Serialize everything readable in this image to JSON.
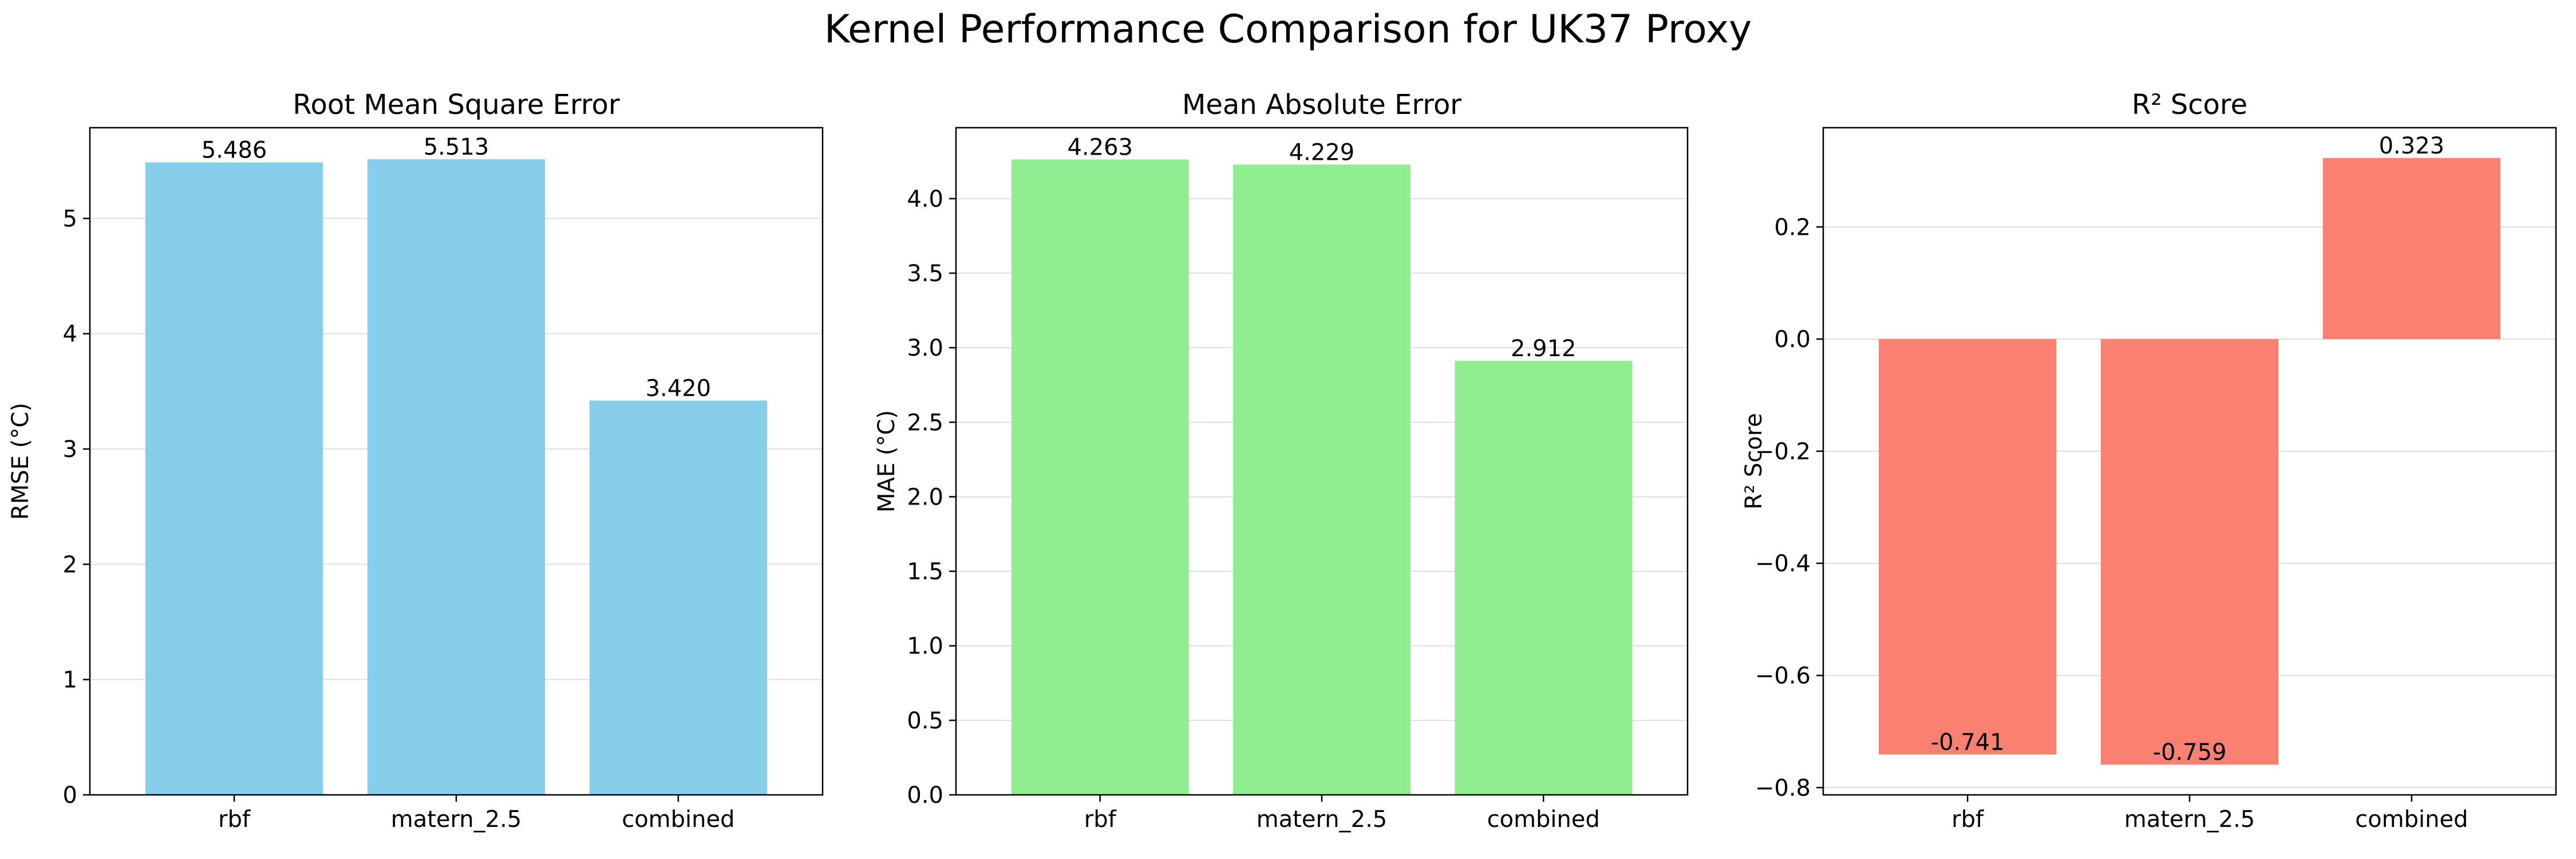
{
  "figure": {
    "title": "Kernel Performance Comparison for UK37 Proxy"
  },
  "chart_data": [
    {
      "type": "bar",
      "title": "Root Mean Square Error",
      "xlabel": "",
      "ylabel": "RMSE (°C)",
      "categories": [
        "rbf",
        "matern_2.5",
        "combined"
      ],
      "values": [
        5.486,
        5.513,
        3.42
      ],
      "value_labels": [
        "5.486",
        "5.513",
        "3.420"
      ],
      "ylim": [
        0,
        5.787
      ],
      "yticks": [
        0,
        1,
        2,
        3,
        4,
        5
      ],
      "ytick_labels": [
        "0",
        "1",
        "2",
        "3",
        "4",
        "5"
      ],
      "grid": "y",
      "color": "#87CEEB"
    },
    {
      "type": "bar",
      "title": "Mean Absolute Error",
      "xlabel": "",
      "ylabel": "MAE (°C)",
      "categories": [
        "rbf",
        "matern_2.5",
        "combined"
      ],
      "values": [
        4.263,
        4.229,
        2.912
      ],
      "value_labels": [
        "4.263",
        "4.229",
        "2.912"
      ],
      "ylim": [
        0,
        4.476
      ],
      "yticks": [
        0,
        0.5,
        1.0,
        1.5,
        2.0,
        2.5,
        3.0,
        3.5,
        4.0
      ],
      "ytick_labels": [
        "0.0",
        "0.5",
        "1.0",
        "1.5",
        "2.0",
        "2.5",
        "3.0",
        "3.5",
        "4.0"
      ],
      "grid": "y",
      "color": "#90EE90"
    },
    {
      "type": "bar",
      "title": "R² Score",
      "xlabel": "",
      "ylabel": "R² Score",
      "categories": [
        "rbf",
        "matern_2.5",
        "combined"
      ],
      "values": [
        -0.741,
        -0.759,
        0.323
      ],
      "value_labels": [
        "-0.741",
        "-0.759",
        "0.323"
      ],
      "ylim": [
        -0.813,
        0.377
      ],
      "yticks": [
        -0.8,
        -0.6,
        -0.4,
        -0.2,
        0.0,
        0.2
      ],
      "ytick_labels": [
        "−0.8",
        "−0.6",
        "−0.4",
        "−0.2",
        "0.0",
        "0.2"
      ],
      "grid": "y",
      "color": "#FA8072"
    }
  ]
}
